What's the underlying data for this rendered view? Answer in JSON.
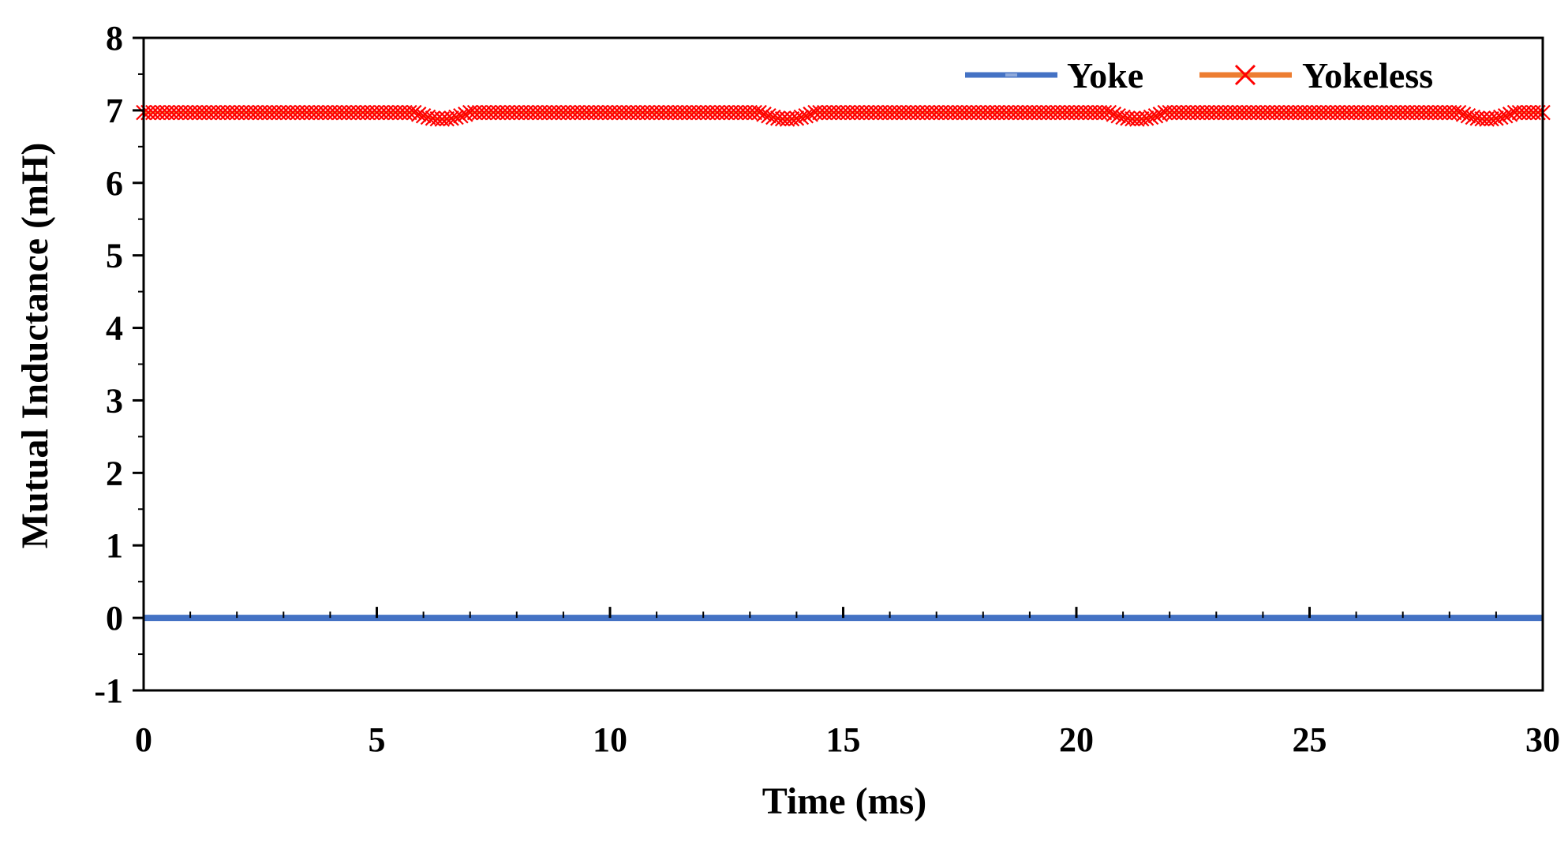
{
  "chart_data": {
    "type": "line",
    "title": "",
    "xlabel": "Time (ms)",
    "ylabel": "Mutual Inductance (mH)",
    "xlim": [
      0,
      30
    ],
    "ylim": [
      -1,
      8
    ],
    "xticks": [
      0,
      5,
      10,
      15,
      20,
      25,
      30
    ],
    "yticks": [
      -1,
      0,
      1,
      2,
      3,
      4,
      5,
      6,
      7,
      8
    ],
    "x_minor_step": 1,
    "y_minor_step": 0.5,
    "grid": false,
    "legend_position": "top-right",
    "series": [
      {
        "name": "Yoke",
        "color": "#4472C4",
        "marker": "dash",
        "x": [
          0,
          30
        ],
        "y": [
          0,
          0
        ]
      },
      {
        "name": "Yokeless",
        "color": "#FF0000",
        "line_color": "#ED7D31",
        "marker": "x",
        "x_start": 0,
        "x_end": 30,
        "x_step": 0.1,
        "base_value": 6.97,
        "dips": [
          {
            "center": 6.4,
            "width": 0.6,
            "depth": 0.09
          },
          {
            "center": 13.8,
            "width": 0.6,
            "depth": 0.09
          },
          {
            "center": 21.3,
            "width": 0.6,
            "depth": 0.09
          },
          {
            "center": 28.8,
            "width": 0.6,
            "depth": 0.09
          }
        ]
      }
    ]
  }
}
